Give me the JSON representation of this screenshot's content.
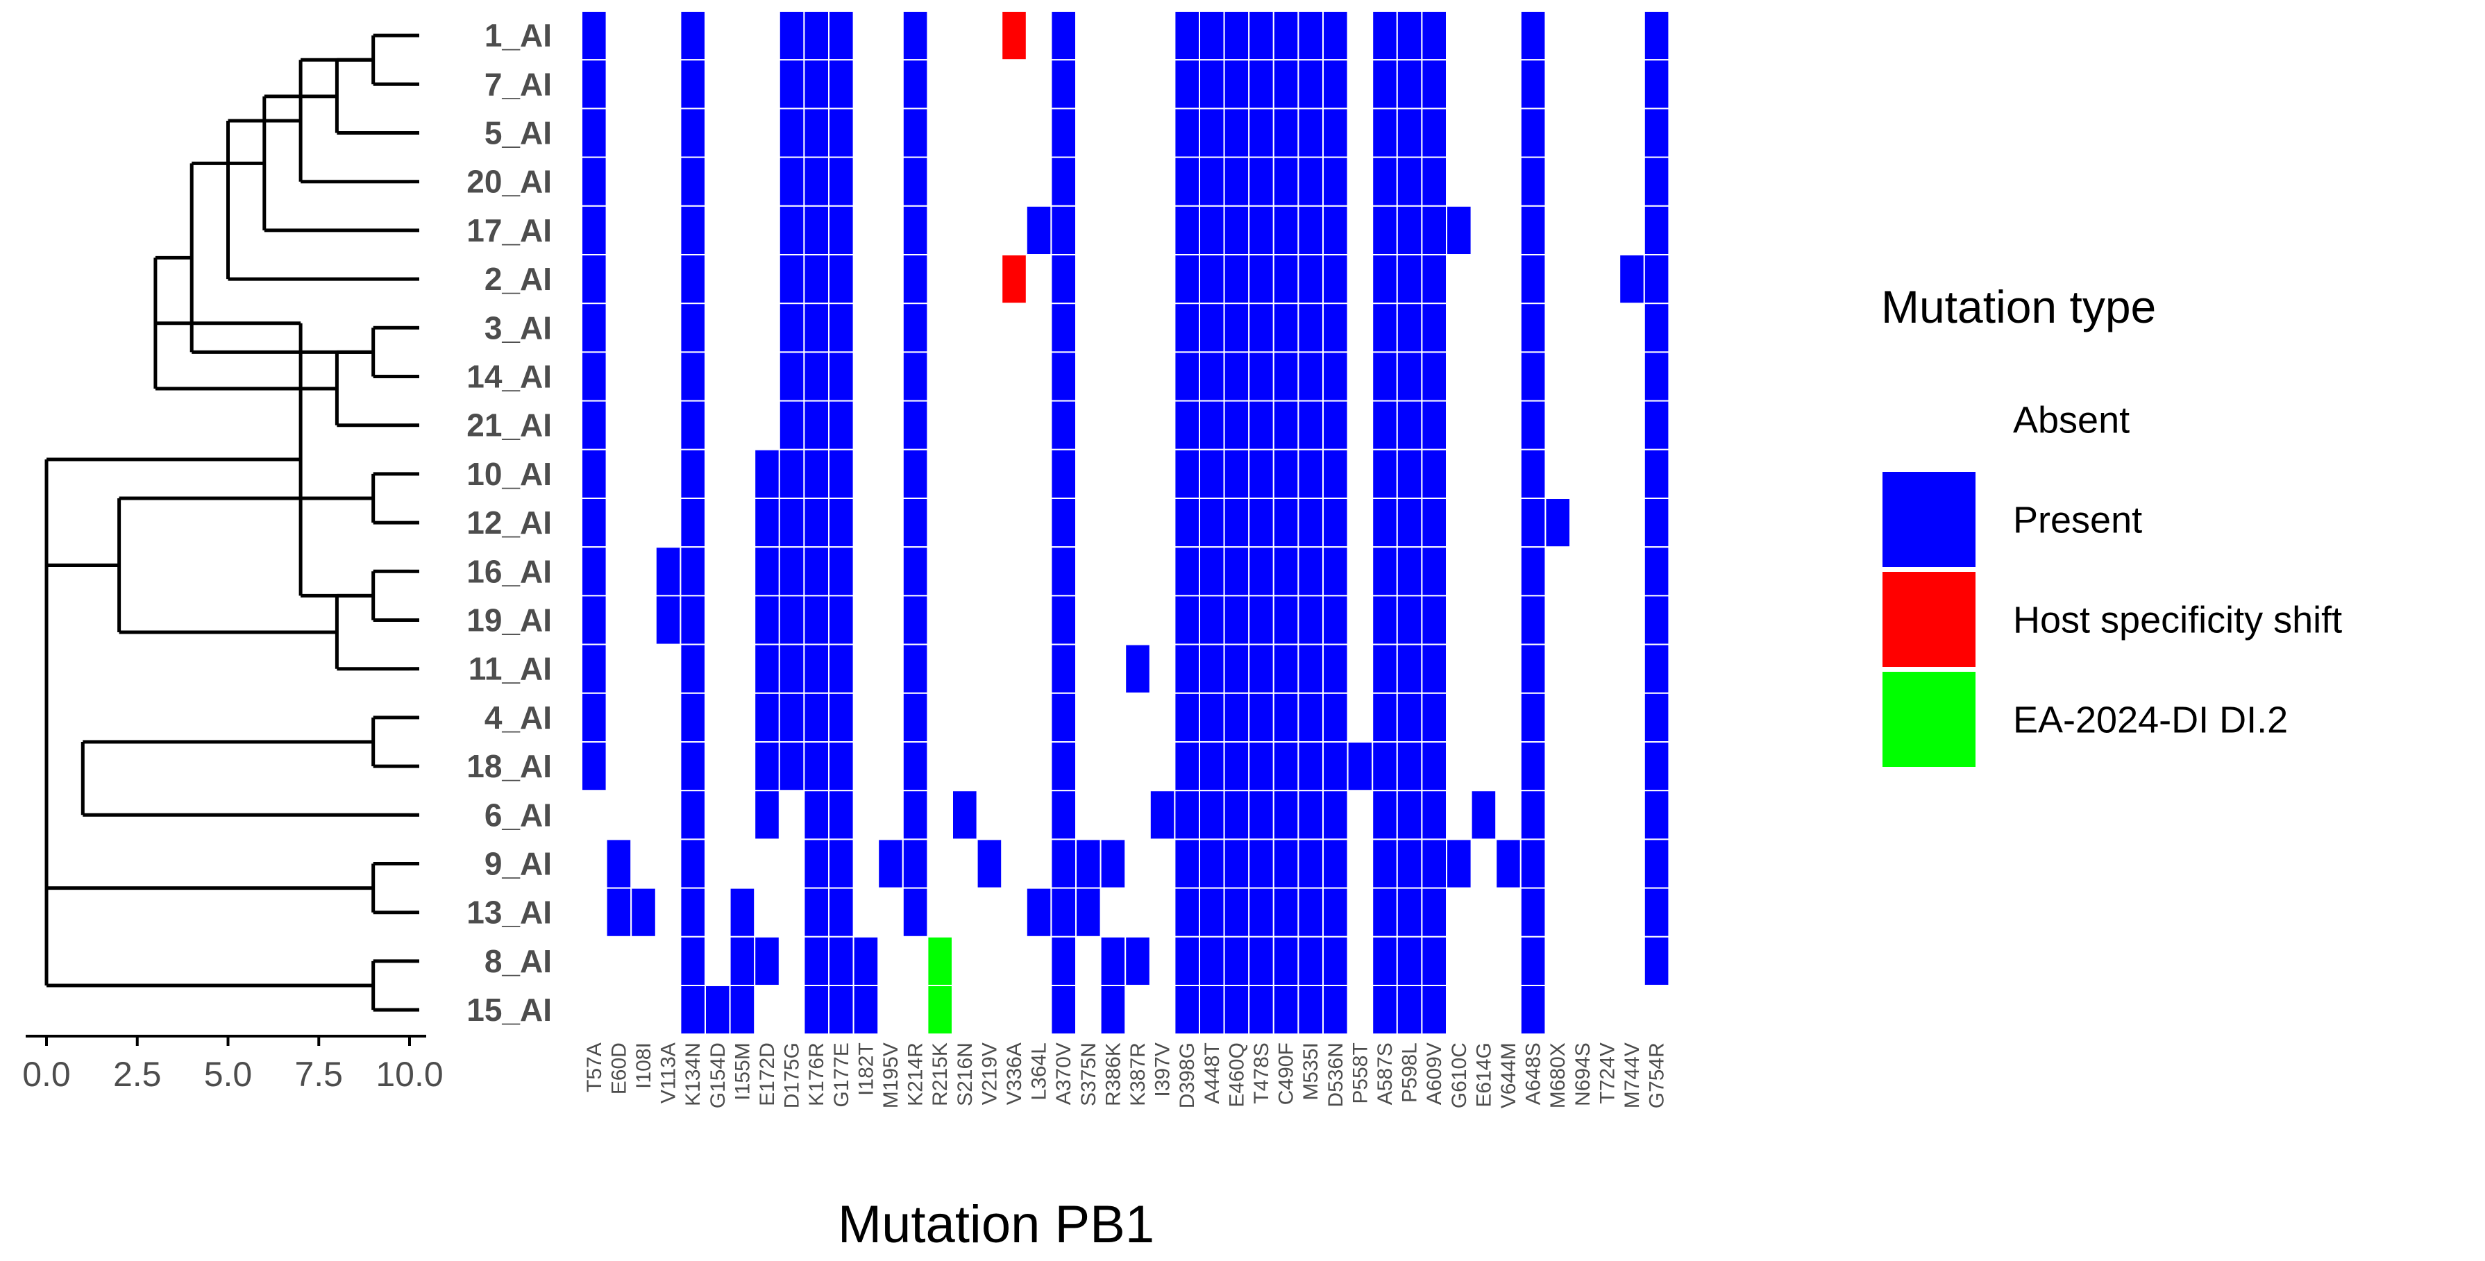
{
  "chart_data": {
    "type": "heatmap",
    "title": "",
    "xlabel": "Mutation PB1",
    "ylabel": "",
    "rows": [
      "1_AI",
      "7_AI",
      "5_AI",
      "20_AI",
      "17_AI",
      "2_AI",
      "3_AI",
      "14_AI",
      "21_AI",
      "10_AI",
      "12_AI",
      "16_AI",
      "19_AI",
      "11_AI",
      "4_AI",
      "18_AI",
      "6_AI",
      "9_AI",
      "13_AI",
      "8_AI",
      "15_AI"
    ],
    "columns": [
      "T57A",
      "E60D",
      "I108I",
      "V113A",
      "K134N",
      "G154D",
      "I155M",
      "E172D",
      "D175G",
      "K176R",
      "G177E",
      "I182T",
      "M195V",
      "K214R",
      "R215K",
      "S216N",
      "V219V",
      "V336A",
      "L364L",
      "A370V",
      "S375N",
      "R386K",
      "K387R",
      "I397V",
      "D398G",
      "A448T",
      "E460Q",
      "T478S",
      "C490F",
      "M535I",
      "D536N",
      "P558T",
      "A587S",
      "P598L",
      "A609V",
      "G610C",
      "E614G",
      "V644M",
      "A648S",
      "M680X",
      "N694S",
      "T724V",
      "M744V",
      "G754R"
    ],
    "cells": [
      {
        "row": "1_AI",
        "present": [
          0,
          4,
          8,
          9,
          10,
          13,
          19,
          24,
          25,
          26,
          27,
          28,
          29,
          30,
          32,
          33,
          34,
          38,
          43
        ],
        "host_shift": [
          17
        ],
        "ea_di": []
      },
      {
        "row": "7_AI",
        "present": [
          0,
          4,
          8,
          9,
          10,
          13,
          19,
          24,
          25,
          26,
          27,
          28,
          29,
          30,
          32,
          33,
          34,
          38,
          43
        ],
        "host_shift": [],
        "ea_di": []
      },
      {
        "row": "5_AI",
        "present": [
          0,
          4,
          8,
          9,
          10,
          13,
          19,
          24,
          25,
          26,
          27,
          28,
          29,
          30,
          32,
          33,
          34,
          38,
          43
        ],
        "host_shift": [],
        "ea_di": []
      },
      {
        "row": "20_AI",
        "present": [
          0,
          4,
          8,
          9,
          10,
          13,
          19,
          24,
          25,
          26,
          27,
          28,
          29,
          30,
          32,
          33,
          34,
          38,
          43
        ],
        "host_shift": [],
        "ea_di": []
      },
      {
        "row": "17_AI",
        "present": [
          0,
          4,
          8,
          9,
          10,
          13,
          18,
          19,
          24,
          25,
          26,
          27,
          28,
          29,
          30,
          32,
          33,
          34,
          35,
          38,
          43
        ],
        "host_shift": [],
        "ea_di": []
      },
      {
        "row": "2_AI",
        "present": [
          0,
          4,
          8,
          9,
          10,
          13,
          19,
          24,
          25,
          26,
          27,
          28,
          29,
          30,
          32,
          33,
          34,
          38,
          42,
          43
        ],
        "host_shift": [
          17
        ],
        "ea_di": []
      },
      {
        "row": "3_AI",
        "present": [
          0,
          4,
          8,
          9,
          10,
          13,
          19,
          24,
          25,
          26,
          27,
          28,
          29,
          30,
          32,
          33,
          34,
          38,
          43
        ],
        "host_shift": [],
        "ea_di": []
      },
      {
        "row": "14_AI",
        "present": [
          0,
          4,
          8,
          9,
          10,
          13,
          19,
          24,
          25,
          26,
          27,
          28,
          29,
          30,
          32,
          33,
          34,
          38,
          43
        ],
        "host_shift": [],
        "ea_di": []
      },
      {
        "row": "21_AI",
        "present": [
          0,
          4,
          8,
          9,
          10,
          13,
          19,
          24,
          25,
          26,
          27,
          28,
          29,
          30,
          32,
          33,
          34,
          38,
          43
        ],
        "host_shift": [],
        "ea_di": []
      },
      {
        "row": "10_AI",
        "present": [
          0,
          4,
          7,
          8,
          9,
          10,
          13,
          19,
          24,
          25,
          26,
          27,
          28,
          29,
          30,
          32,
          33,
          34,
          38,
          43
        ],
        "host_shift": [],
        "ea_di": []
      },
      {
        "row": "12_AI",
        "present": [
          0,
          4,
          7,
          8,
          9,
          10,
          13,
          19,
          24,
          25,
          26,
          27,
          28,
          29,
          30,
          32,
          33,
          34,
          38,
          39,
          43
        ],
        "host_shift": [],
        "ea_di": []
      },
      {
        "row": "16_AI",
        "present": [
          0,
          3,
          4,
          7,
          8,
          9,
          10,
          13,
          19,
          24,
          25,
          26,
          27,
          28,
          29,
          30,
          32,
          33,
          34,
          38,
          43
        ],
        "host_shift": [],
        "ea_di": []
      },
      {
        "row": "19_AI",
        "present": [
          0,
          3,
          4,
          7,
          8,
          9,
          10,
          13,
          19,
          24,
          25,
          26,
          27,
          28,
          29,
          30,
          32,
          33,
          34,
          38,
          43
        ],
        "host_shift": [],
        "ea_di": []
      },
      {
        "row": "11_AI",
        "present": [
          0,
          4,
          7,
          8,
          9,
          10,
          13,
          19,
          22,
          24,
          25,
          26,
          27,
          28,
          29,
          30,
          32,
          33,
          34,
          38,
          43
        ],
        "host_shift": [],
        "ea_di": []
      },
      {
        "row": "4_AI",
        "present": [
          0,
          4,
          7,
          8,
          9,
          10,
          13,
          19,
          24,
          25,
          26,
          27,
          28,
          29,
          30,
          32,
          33,
          34,
          38,
          43
        ],
        "host_shift": [],
        "ea_di": []
      },
      {
        "row": "18_AI",
        "present": [
          0,
          4,
          7,
          8,
          9,
          10,
          13,
          19,
          24,
          25,
          26,
          27,
          28,
          29,
          30,
          31,
          32,
          33,
          34,
          38,
          43
        ],
        "host_shift": [],
        "ea_di": []
      },
      {
        "row": "6_AI",
        "present": [
          4,
          7,
          9,
          10,
          13,
          15,
          19,
          23,
          24,
          25,
          26,
          27,
          28,
          29,
          30,
          32,
          33,
          34,
          36,
          38,
          43
        ],
        "host_shift": [],
        "ea_di": []
      },
      {
        "row": "9_AI",
        "present": [
          1,
          4,
          9,
          10,
          12,
          13,
          16,
          19,
          20,
          21,
          24,
          25,
          26,
          27,
          28,
          29,
          30,
          32,
          33,
          34,
          35,
          37,
          38,
          43
        ],
        "host_shift": [],
        "ea_di": []
      },
      {
        "row": "13_AI",
        "present": [
          1,
          2,
          4,
          6,
          9,
          10,
          13,
          18,
          19,
          20,
          24,
          25,
          26,
          27,
          28,
          29,
          30,
          32,
          33,
          34,
          38,
          43
        ],
        "host_shift": [],
        "ea_di": []
      },
      {
        "row": "8_AI",
        "present": [
          4,
          6,
          7,
          9,
          10,
          11,
          19,
          21,
          22,
          24,
          25,
          26,
          27,
          28,
          29,
          30,
          32,
          33,
          34,
          38,
          43
        ],
        "host_shift": [],
        "ea_di": [
          14
        ]
      },
      {
        "row": "15_AI",
        "present": [
          4,
          5,
          6,
          9,
          10,
          11,
          19,
          21,
          24,
          25,
          26,
          27,
          28,
          29,
          30,
          32,
          33,
          34,
          38
        ],
        "host_shift": [],
        "ea_di": [
          14
        ]
      }
    ],
    "dendrogram_axis": {
      "ticks": [
        "0.0",
        "2.5",
        "5.0",
        "7.5",
        "10.0"
      ],
      "range": [
        0,
        10
      ]
    },
    "dendrogram_merges": [
      {
        "children": [
          "1_AI",
          "7_AI"
        ],
        "height": 9
      },
      {
        "children": [
          "1_AI+7_AI",
          "5_AI"
        ],
        "height": 8
      },
      {
        "children": [
          "C1",
          "20_AI"
        ],
        "height": 7
      },
      {
        "children": [
          "C2",
          "17_AI"
        ],
        "height": 6
      },
      {
        "children": [
          "C3",
          "2_AI"
        ],
        "height": 5
      },
      {
        "children": [
          "3_AI",
          "14_AI"
        ],
        "height": 9
      },
      {
        "children": [
          "3_AI+14_AI",
          "21_AI"
        ],
        "height": 8
      },
      {
        "children": [
          "C4",
          "C6"
        ],
        "height": 4
      },
      {
        "children": [
          "10_AI",
          "12_AI"
        ],
        "height": 9
      },
      {
        "children": [
          "C7",
          "C8"
        ],
        "height": 3
      },
      {
        "children": [
          "16_AI",
          "19_AI"
        ],
        "height": 9
      },
      {
        "children": [
          "16_AI+19_AI",
          "11_AI"
        ],
        "height": 8
      },
      {
        "children": [
          "4_AI",
          "18_AI"
        ],
        "height": 9
      },
      {
        "children": [
          "C10",
          "C11"
        ],
        "height": 7
      },
      {
        "children": [
          "C9",
          "C12"
        ],
        "height": 2
      },
      {
        "children": [
          "C13",
          "6_AI"
        ],
        "height": 1
      },
      {
        "children": [
          "9_AI",
          "13_AI"
        ],
        "height": 9
      },
      {
        "children": [
          "8_AI",
          "15_AI"
        ],
        "height": 9
      },
      {
        "children": [
          "C14",
          "9_AI+13_AI"
        ],
        "height": 0
      },
      {
        "children": [
          "C15",
          "8_AI+15_AI"
        ],
        "height": 0
      }
    ],
    "legend": {
      "title": "Mutation type",
      "placement": "right",
      "entries": [
        {
          "label": "Absent",
          "color": "#ffffff"
        },
        {
          "label": "Present",
          "color": "#0000ff"
        },
        {
          "label": "Host specificity shift",
          "color": "#ff0000"
        },
        {
          "label": "EA-2024-DI DI.2",
          "color": "#00ff00"
        }
      ]
    },
    "colors": {
      "present": "#0000ff",
      "host_shift": "#ff0000",
      "ea_di": "#00ff00",
      "tree": "#000000",
      "text": "#4d4d4d"
    }
  }
}
